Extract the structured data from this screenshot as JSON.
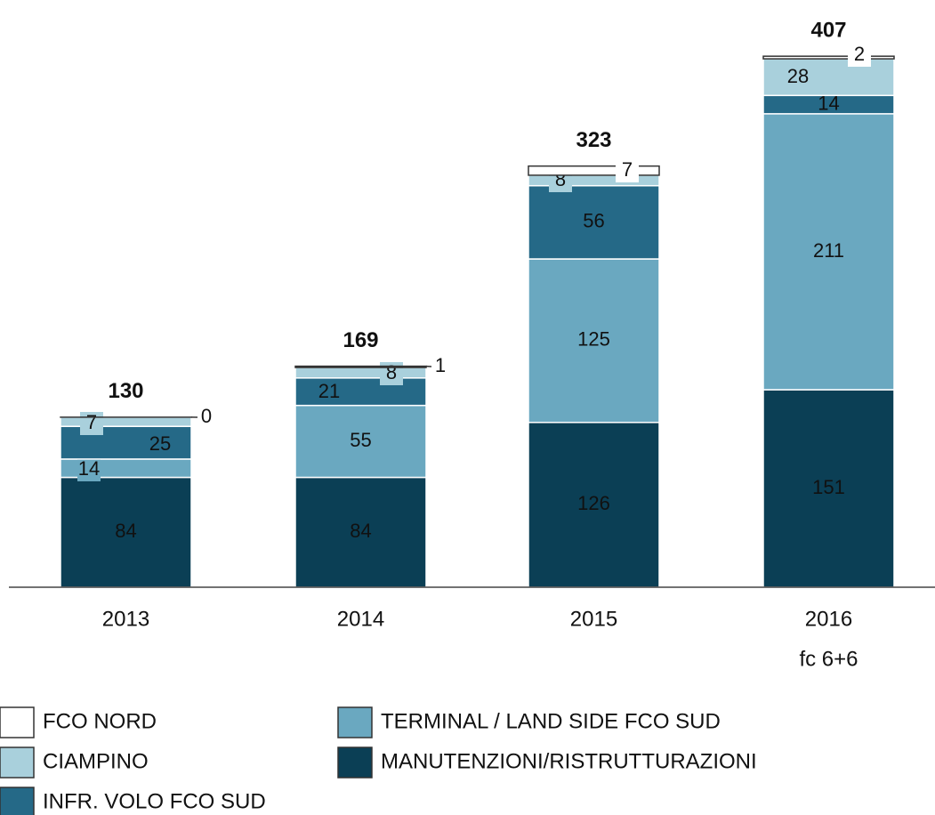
{
  "chart_data": {
    "type": "stacked_bar",
    "categories": [
      [
        "2013"
      ],
      [
        "2014"
      ],
      [
        "2015"
      ],
      [
        "2016",
        "fc 6+6"
      ]
    ],
    "series": [
      {
        "name": "MANUTENZIONI/RISTRUTTURAZIONI",
        "color": "#0b3f55",
        "values": [
          84,
          84,
          126,
          151
        ]
      },
      {
        "name": "TERMINAL / LAND SIDE FCO SUD",
        "color": "#6aa8c0",
        "values": [
          14,
          55,
          125,
          211
        ]
      },
      {
        "name": "INFR. VOLO FCO SUD",
        "color": "#256987",
        "values": [
          25,
          21,
          56,
          14
        ]
      },
      {
        "name": "CIAMPINO",
        "color": "#a9d0dc",
        "values": [
          7,
          8,
          8,
          28
        ]
      },
      {
        "name": "FCO NORD",
        "color": "#ffffff",
        "values": [
          0,
          1,
          7,
          2
        ]
      }
    ],
    "totals": [
      130,
      169,
      323,
      407
    ]
  }
}
